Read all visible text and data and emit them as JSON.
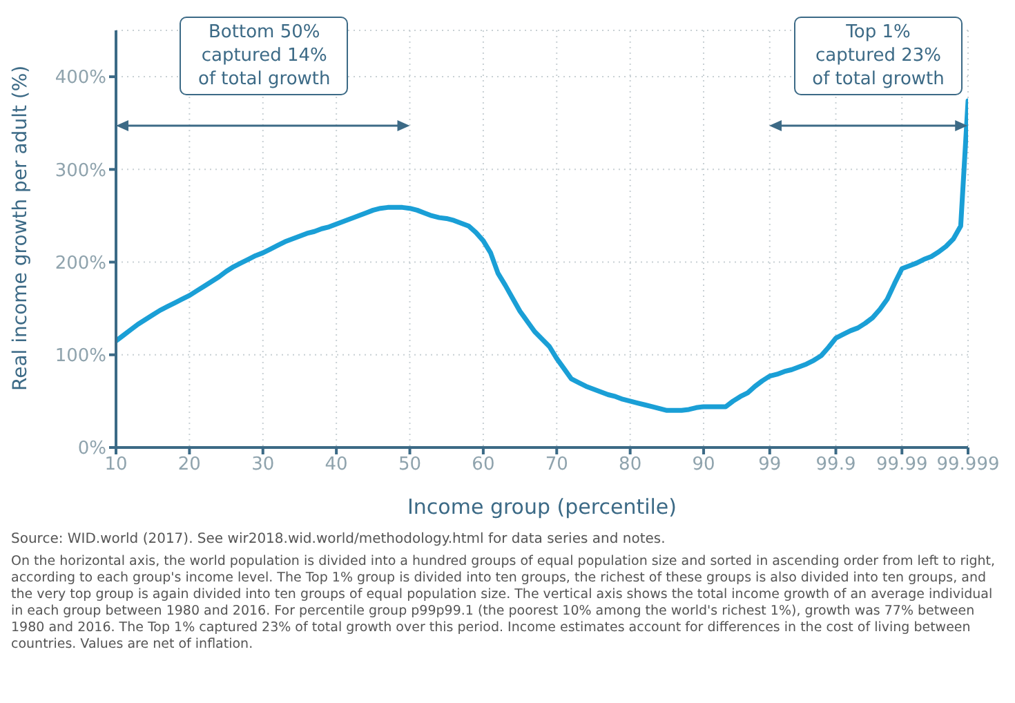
{
  "chart_data": {
    "type": "line",
    "xlabel": "Income group (percentile)",
    "ylabel": "Real income growth per adult (%)",
    "categories": [
      "10",
      null,
      null,
      null,
      null,
      null,
      null,
      null,
      null,
      null,
      "20",
      null,
      null,
      null,
      null,
      null,
      null,
      null,
      null,
      null,
      "30",
      null,
      null,
      null,
      null,
      null,
      null,
      null,
      null,
      null,
      "40",
      null,
      null,
      null,
      null,
      null,
      null,
      null,
      null,
      null,
      "50",
      null,
      null,
      null,
      null,
      null,
      null,
      null,
      null,
      null,
      "60",
      null,
      null,
      null,
      null,
      null,
      null,
      null,
      null,
      null,
      "70",
      null,
      null,
      null,
      null,
      null,
      null,
      null,
      null,
      null,
      "80",
      null,
      null,
      null,
      null,
      null,
      null,
      null,
      null,
      null,
      "90",
      null,
      null,
      null,
      null,
      null,
      null,
      null,
      null,
      "99",
      null,
      null,
      null,
      null,
      null,
      null,
      null,
      null,
      "99.9",
      null,
      null,
      null,
      null,
      null,
      null,
      null,
      null,
      "99.99",
      null,
      null,
      null,
      null,
      null,
      null,
      null,
      null,
      "99.999"
    ],
    "series": [
      {
        "color": "#1a9fd6",
        "values": [
          115,
          121,
          127,
          133,
          138,
          143,
          148,
          152,
          156,
          160,
          164,
          169,
          174,
          179,
          184,
          190,
          195,
          199,
          203,
          207,
          210,
          214,
          218,
          222,
          225,
          228,
          231,
          233,
          236,
          238,
          241,
          244,
          247,
          250,
          253,
          256,
          258,
          259,
          259,
          259,
          258,
          256,
          253,
          250,
          248,
          247,
          245,
          242,
          239,
          232,
          223,
          210,
          188,
          175,
          161,
          147,
          136,
          125,
          117,
          109,
          96,
          85,
          74,
          70,
          66,
          63,
          60,
          57,
          55,
          52,
          50,
          48,
          46,
          44,
          42,
          40,
          40,
          40,
          41,
          43,
          44,
          44,
          44,
          44,
          50,
          55,
          59,
          66,
          72,
          77,
          79,
          82,
          84,
          87,
          90,
          94,
          99,
          108,
          118,
          122,
          126,
          129,
          134,
          140,
          149,
          160,
          177,
          193,
          196,
          199,
          203,
          206,
          211,
          217,
          225,
          239,
          374
        ]
      }
    ],
    "ylim": [
      0,
      450
    ],
    "yticks": [
      {
        "value": 0,
        "label": "0%"
      },
      {
        "value": 100,
        "label": "100%"
      },
      {
        "value": 200,
        "label": "200%"
      },
      {
        "value": 300,
        "label": "300%"
      },
      {
        "value": 400,
        "label": "400%"
      }
    ],
    "grid": true,
    "annotations": [
      "Bottom 50%\ncaptured 14%\nof total growth",
      "Top 1%\ncaptured 23%\nof total growth",
      "Source: WID.world (2017). See wir2018.wid.world/methodology.html for data series and notes.",
      "On the horizontal axis, the world population is divided into a hundred groups of equal population size and sorted in ascending order from left to right, according to each group's income level. The Top 1% group is divided into ten groups, the richest of these groups is also divided into ten groups, and the very top group is again divided into ten groups of equal population size. The vertical axis shows the total income growth of an average individual in each group between 1980 and 2016. For percentile group p99p99.1 (the poorest 10% among the world's richest 1%), growth was 77% between 1980 and 2016. The Top 1% captured 23% of total growth over this period. Income estimates account for differences in the cost of living between countries. Values are net of inflation."
    ]
  }
}
